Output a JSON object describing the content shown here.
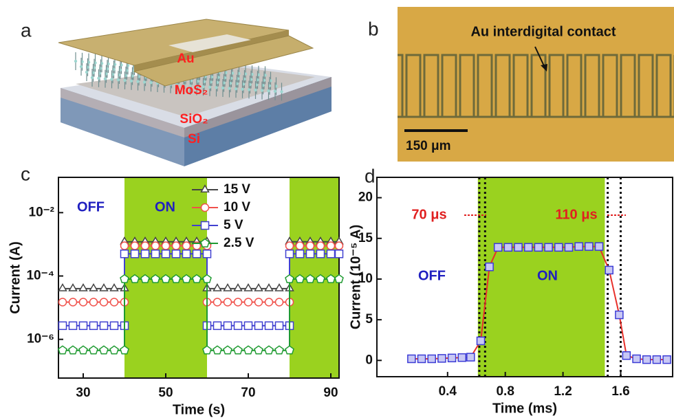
{
  "figure": {
    "panel_a": {
      "label": "a",
      "layers": [
        "Au",
        "MoS₂",
        "SiO₂",
        "Si"
      ]
    },
    "panel_b": {
      "label": "b",
      "annotation": "Au interdigital contact",
      "scale_bar": "150 μm"
    }
  },
  "chart_data": [
    {
      "type": "line",
      "panel": "c",
      "xlabel": "Time (s)",
      "ylabel": "Current (A)",
      "log_y": true,
      "xlim": [
        24,
        92
      ],
      "ylim": [
        6e-08,
        0.13
      ],
      "xticks": [
        30,
        50,
        70,
        90
      ],
      "yticks": [
        {
          "value": 1e-06,
          "label": "10⁻⁶"
        },
        {
          "value": 0.0001,
          "label": "10⁻⁴"
        },
        {
          "value": 0.01,
          "label": "10⁻²"
        }
      ],
      "shaded": [
        [
          40,
          60
        ],
        [
          80,
          92
        ]
      ],
      "shade_color": "#9ad21f",
      "annotations": [
        "OFF",
        "ON"
      ],
      "legend": "top-center",
      "x": [
        25,
        27.5,
        30,
        32.5,
        35,
        37.5,
        40,
        40,
        42.5,
        45,
        47.5,
        50,
        52.5,
        55,
        57.5,
        60,
        60,
        62.5,
        65,
        67.5,
        70,
        72.5,
        75,
        77.5,
        80,
        80,
        82.5,
        85,
        87.5,
        90,
        92
      ],
      "series": [
        {
          "name": "15 V",
          "color": "#444444",
          "marker": "triangle",
          "values": [
            4e-05,
            4e-05,
            4e-05,
            4e-05,
            4e-05,
            4e-05,
            4e-05,
            0.0012,
            0.0012,
            0.0012,
            0.0012,
            0.0012,
            0.0012,
            0.0012,
            0.0012,
            0.0012,
            4e-05,
            4e-05,
            4e-05,
            4e-05,
            4e-05,
            4e-05,
            4e-05,
            4e-05,
            4e-05,
            0.0012,
            0.0012,
            0.0012,
            0.0012,
            0.0012,
            0.0012
          ]
        },
        {
          "name": "10 V",
          "color": "#f0504a",
          "marker": "circle",
          "values": [
            1.5e-05,
            1.5e-05,
            1.5e-05,
            1.5e-05,
            1.5e-05,
            1.5e-05,
            1.5e-05,
            0.0009,
            0.0009,
            0.0009,
            0.0009,
            0.0009,
            0.0009,
            0.0009,
            0.0009,
            0.0009,
            1.5e-05,
            1.5e-05,
            1.5e-05,
            1.5e-05,
            1.5e-05,
            1.5e-05,
            1.5e-05,
            1.5e-05,
            1.5e-05,
            0.0009,
            0.0009,
            0.0009,
            0.0009,
            0.0009,
            0.0009
          ]
        },
        {
          "name": "5 V",
          "color": "#4040d0",
          "marker": "square",
          "values": [
            2.7e-06,
            2.7e-06,
            2.7e-06,
            2.7e-06,
            2.7e-06,
            2.7e-06,
            2.7e-06,
            0.0005,
            0.0005,
            0.0005,
            0.0005,
            0.0005,
            0.0005,
            0.0005,
            0.0005,
            0.0005,
            2.7e-06,
            2.7e-06,
            2.7e-06,
            2.7e-06,
            2.7e-06,
            2.7e-06,
            2.7e-06,
            2.7e-06,
            2.7e-06,
            0.0005,
            0.0005,
            0.0005,
            0.0005,
            0.0005,
            0.0005
          ]
        },
        {
          "name": "2.5 V",
          "color": "#1e9a30",
          "marker": "pentagon",
          "values": [
            4.5e-07,
            4.5e-07,
            4.5e-07,
            4.5e-07,
            4.5e-07,
            4.5e-07,
            4.5e-07,
            8e-05,
            8e-05,
            8e-05,
            8e-05,
            8e-05,
            8e-05,
            8e-05,
            8e-05,
            8e-05,
            4.5e-07,
            4.5e-07,
            4.5e-07,
            4.5e-07,
            4.5e-07,
            4.5e-07,
            4.5e-07,
            4.5e-07,
            4.5e-07,
            8e-05,
            8e-05,
            8e-05,
            8e-05,
            8e-05,
            8e-05
          ]
        }
      ]
    },
    {
      "type": "line",
      "panel": "d",
      "xlabel": "Time (ms)",
      "ylabel": "Current (10⁻⁵ A)",
      "log_y": false,
      "xlim": [
        -0.09,
        1.96
      ],
      "ylim": [
        -2,
        22.5
      ],
      "xticks": [
        0.4,
        0.8,
        1.2,
        1.6
      ],
      "yticks": [
        0,
        5,
        10,
        15,
        20
      ],
      "shaded": [
        [
          0.61,
          1.49
        ]
      ],
      "shade_color": "#9ad21f",
      "vlines": [
        0.62,
        0.66,
        1.51,
        1.6
      ],
      "annotations": [
        "70 μs",
        "110 μs",
        "OFF",
        "ON"
      ],
      "x": [
        0.15,
        0.22,
        0.29,
        0.36,
        0.43,
        0.5,
        0.56,
        0.63,
        0.69,
        0.75,
        0.82,
        0.89,
        0.96,
        1.03,
        1.1,
        1.17,
        1.24,
        1.31,
        1.38,
        1.45,
        1.52,
        1.59,
        1.64,
        1.71,
        1.78,
        1.85,
        1.92
      ],
      "series": [
        {
          "color": "#e8302a",
          "marker": "square",
          "marker_color": "#3b3bd6",
          "values": [
            0.2,
            0.2,
            0.2,
            0.25,
            0.3,
            0.35,
            0.4,
            2.4,
            11.5,
            13.9,
            13.9,
            13.9,
            13.9,
            13.9,
            13.9,
            13.9,
            13.9,
            14,
            14,
            14,
            11.1,
            5.6,
            0.6,
            0.2,
            0.1,
            0.1,
            0.1
          ]
        }
      ]
    }
  ]
}
